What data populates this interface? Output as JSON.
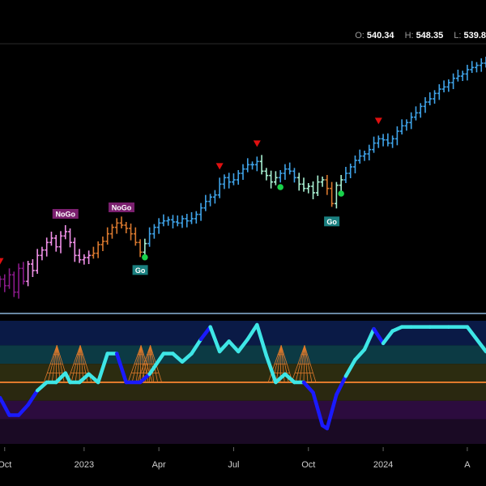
{
  "ohlc_bar": {
    "open_label": "O:",
    "open_value": "540.34",
    "high_label": "H:",
    "high_value": "548.35",
    "low_label": "L:",
    "low_value": "539.8"
  },
  "colors": {
    "background": "#000000",
    "strong_go": "#3fa3e8",
    "weak_go": "#a8f0d2",
    "weak_nogo": "#f090e8",
    "strong_nogo": "#8a1a8a",
    "nogo_orange": "#d9782e",
    "osc_cyan": "#3ee6e6",
    "osc_blue": "#1a1aff",
    "zero_line": "#e07a2c",
    "signal_red": "#e01010",
    "signal_green": "#18d24a",
    "go_label_bg": "#1a8080",
    "nogo_label_bg": "#7a1f6e",
    "separator": "#8ab4d8"
  },
  "chart_data": [
    {
      "type": "line",
      "title": "",
      "note": "weekly OHLC bars colored by trend regime",
      "x_ticks": [
        "Oct",
        "2023",
        "Apr",
        "Jul",
        "Oct",
        "2024",
        "A"
      ],
      "series": [
        {
          "points": [
            {
              "t": 0,
              "c": 318,
              "s": "strong_nogo"
            },
            {
              "t": 1,
              "c": 312,
              "s": "strong_nogo"
            },
            {
              "t": 2,
              "c": 322,
              "s": "strong_nogo"
            },
            {
              "t": 3,
              "c": 306,
              "s": "strong_nogo"
            },
            {
              "t": 4,
              "c": 328,
              "s": "strong_nogo"
            },
            {
              "t": 5,
              "c": 316,
              "s": "strong_nogo"
            },
            {
              "t": 6,
              "c": 332,
              "s": "weak_nogo"
            },
            {
              "t": 7,
              "c": 326,
              "s": "weak_nogo"
            },
            {
              "t": 8,
              "c": 340,
              "s": "weak_nogo"
            },
            {
              "t": 9,
              "c": 345,
              "s": "weak_nogo"
            },
            {
              "t": 10,
              "c": 352,
              "s": "weak_nogo"
            },
            {
              "t": 11,
              "c": 356,
              "s": "weak_nogo"
            },
            {
              "t": 12,
              "c": 348,
              "s": "weak_nogo"
            },
            {
              "t": 13,
              "c": 358,
              "s": "weak_nogo"
            },
            {
              "t": 14,
              "c": 362,
              "s": "weak_nogo"
            },
            {
              "t": 15,
              "c": 352,
              "s": "weak_nogo"
            },
            {
              "t": 16,
              "c": 340,
              "s": "weak_nogo"
            },
            {
              "t": 17,
              "c": 336,
              "s": "weak_nogo"
            },
            {
              "t": 18,
              "c": 338,
              "s": "weak_nogo"
            },
            {
              "t": 19,
              "c": 340,
              "s": "weak_nogo"
            },
            {
              "t": 20,
              "c": 342,
              "s": "nogo_orange"
            },
            {
              "t": 21,
              "c": 350,
              "s": "nogo_orange"
            },
            {
              "t": 22,
              "c": 353,
              "s": "nogo_orange"
            },
            {
              "t": 23,
              "c": 360,
              "s": "nogo_orange"
            },
            {
              "t": 24,
              "c": 366,
              "s": "nogo_orange"
            },
            {
              "t": 25,
              "c": 370,
              "s": "nogo_orange"
            },
            {
              "t": 26,
              "c": 368,
              "s": "nogo_orange"
            },
            {
              "t": 27,
              "c": 365,
              "s": "nogo_orange"
            },
            {
              "t": 28,
              "c": 360,
              "s": "nogo_orange"
            },
            {
              "t": 29,
              "c": 352,
              "s": "nogo_orange"
            },
            {
              "t": 30,
              "c": 343,
              "s": "nogo_orange"
            },
            {
              "t": 31,
              "c": 351,
              "s": "weak_go"
            },
            {
              "t": 32,
              "c": 360,
              "s": "strong_go"
            },
            {
              "t": 33,
              "c": 366,
              "s": "strong_go"
            },
            {
              "t": 34,
              "c": 370,
              "s": "strong_go"
            },
            {
              "t": 35,
              "c": 372,
              "s": "strong_go"
            },
            {
              "t": 36,
              "c": 373,
              "s": "strong_go"
            },
            {
              "t": 37,
              "c": 371,
              "s": "strong_go"
            },
            {
              "t": 38,
              "c": 370,
              "s": "strong_go"
            },
            {
              "t": 39,
              "c": 374,
              "s": "strong_go"
            },
            {
              "t": 40,
              "c": 372,
              "s": "strong_go"
            },
            {
              "t": 41,
              "c": 374,
              "s": "strong_go"
            },
            {
              "t": 42,
              "c": 378,
              "s": "strong_go"
            },
            {
              "t": 43,
              "c": 384,
              "s": "strong_go"
            },
            {
              "t": 44,
              "c": 390,
              "s": "strong_go"
            },
            {
              "t": 45,
              "c": 394,
              "s": "strong_go"
            },
            {
              "t": 46,
              "c": 396,
              "s": "strong_go"
            },
            {
              "t": 47,
              "c": 406,
              "s": "strong_go"
            },
            {
              "t": 48,
              "c": 412,
              "s": "strong_go"
            },
            {
              "t": 49,
              "c": 408,
              "s": "strong_go"
            },
            {
              "t": 50,
              "c": 410,
              "s": "strong_go"
            },
            {
              "t": 51,
              "c": 416,
              "s": "strong_go"
            },
            {
              "t": 52,
              "c": 420,
              "s": "strong_go"
            },
            {
              "t": 53,
              "c": 424,
              "s": "strong_go"
            },
            {
              "t": 54,
              "c": 424,
              "s": "strong_go"
            },
            {
              "t": 55,
              "c": 427,
              "s": "strong_go"
            },
            {
              "t": 56,
              "c": 418,
              "s": "weak_go"
            },
            {
              "t": 57,
              "c": 414,
              "s": "weak_go"
            },
            {
              "t": 58,
              "c": 408,
              "s": "weak_go"
            },
            {
              "t": 59,
              "c": 412,
              "s": "weak_go"
            },
            {
              "t": 60,
              "c": 416,
              "s": "strong_go"
            },
            {
              "t": 61,
              "c": 420,
              "s": "strong_go"
            },
            {
              "t": 62,
              "c": 418,
              "s": "strong_go"
            },
            {
              "t": 63,
              "c": 412,
              "s": "strong_go"
            },
            {
              "t": 64,
              "c": 406,
              "s": "weak_go"
            },
            {
              "t": 65,
              "c": 402,
              "s": "weak_go"
            },
            {
              "t": 66,
              "c": 404,
              "s": "weak_go"
            },
            {
              "t": 67,
              "c": 398,
              "s": "weak_go"
            },
            {
              "t": 68,
              "c": 408,
              "s": "weak_go"
            },
            {
              "t": 69,
              "c": 410,
              "s": "weak_go"
            },
            {
              "t": 70,
              "c": 402,
              "s": "nogo_orange"
            },
            {
              "t": 71,
              "c": 388,
              "s": "nogo_orange"
            },
            {
              "t": 72,
              "c": 405,
              "s": "weak_go"
            },
            {
              "t": 73,
              "c": 410,
              "s": "weak_go"
            },
            {
              "t": 74,
              "c": 416,
              "s": "strong_go"
            },
            {
              "t": 75,
              "c": 422,
              "s": "strong_go"
            },
            {
              "t": 76,
              "c": 428,
              "s": "strong_go"
            },
            {
              "t": 77,
              "c": 432,
              "s": "strong_go"
            },
            {
              "t": 78,
              "c": 434,
              "s": "strong_go"
            },
            {
              "t": 79,
              "c": 438,
              "s": "strong_go"
            },
            {
              "t": 80,
              "c": 444,
              "s": "strong_go"
            },
            {
              "t": 81,
              "c": 448,
              "s": "strong_go"
            },
            {
              "t": 82,
              "c": 447,
              "s": "strong_go"
            },
            {
              "t": 83,
              "c": 444,
              "s": "strong_go"
            },
            {
              "t": 84,
              "c": 448,
              "s": "strong_go"
            },
            {
              "t": 85,
              "c": 455,
              "s": "strong_go"
            },
            {
              "t": 86,
              "c": 460,
              "s": "strong_go"
            },
            {
              "t": 87,
              "c": 463,
              "s": "strong_go"
            },
            {
              "t": 88,
              "c": 468,
              "s": "strong_go"
            },
            {
              "t": 89,
              "c": 472,
              "s": "strong_go"
            },
            {
              "t": 90,
              "c": 478,
              "s": "strong_go"
            },
            {
              "t": 91,
              "c": 482,
              "s": "strong_go"
            },
            {
              "t": 92,
              "c": 485,
              "s": "strong_go"
            },
            {
              "t": 93,
              "c": 490,
              "s": "strong_go"
            },
            {
              "t": 94,
              "c": 494,
              "s": "strong_go"
            },
            {
              "t": 95,
              "c": 496,
              "s": "strong_go"
            },
            {
              "t": 96,
              "c": 500,
              "s": "strong_go"
            },
            {
              "t": 97,
              "c": 504,
              "s": "strong_go"
            },
            {
              "t": 98,
              "c": 506,
              "s": "strong_go"
            },
            {
              "t": 99,
              "c": 508,
              "s": "strong_go"
            },
            {
              "t": 100,
              "c": 512,
              "s": "strong_go"
            },
            {
              "t": 101,
              "c": 514,
              "s": "strong_go"
            },
            {
              "t": 102,
              "c": 516,
              "s": "strong_go"
            },
            {
              "t": 103,
              "c": 518,
              "s": "strong_go"
            },
            {
              "t": 104,
              "c": 517,
              "s": "strong_go"
            }
          ]
        }
      ],
      "ylim": [
        290,
        530
      ],
      "xlim": [
        0,
        104
      ],
      "annotations": [
        {
          "type": "label",
          "text": "NoGo",
          "t": 14,
          "kind": "nogo"
        },
        {
          "type": "label",
          "text": "NoGo",
          "t": 26,
          "kind": "nogo"
        },
        {
          "type": "label",
          "text": "Go",
          "t": 30,
          "kind": "go"
        },
        {
          "type": "label",
          "text": "Go",
          "t": 71,
          "kind": "go"
        },
        {
          "type": "marker",
          "shape": "triangle-down",
          "t": 0,
          "color": "signal_red"
        },
        {
          "type": "marker",
          "shape": "triangle-down",
          "t": 47,
          "color": "signal_red"
        },
        {
          "type": "marker",
          "shape": "triangle-down",
          "t": 55,
          "color": "signal_red"
        },
        {
          "type": "marker",
          "shape": "triangle-down",
          "t": 81,
          "color": "signal_red"
        },
        {
          "type": "marker",
          "shape": "circle",
          "t": 31,
          "color": "signal_green"
        },
        {
          "type": "marker",
          "shape": "circle",
          "t": 60,
          "color": "signal_green"
        },
        {
          "type": "marker",
          "shape": "circle",
          "t": 73,
          "color": "signal_green"
        }
      ]
    },
    {
      "type": "line",
      "title": "",
      "note": "momentum oscillator with colored zones and zero line",
      "ylim": [
        -6,
        6
      ],
      "zero_line": 0,
      "series": [
        {
          "points": [
            {
              "t": 0,
              "v": -1.5,
              "s": "blue"
            },
            {
              "t": 2,
              "v": -3.2,
              "s": "blue"
            },
            {
              "t": 4,
              "v": -3.2,
              "s": "blue"
            },
            {
              "t": 6,
              "v": -2.2,
              "s": "blue"
            },
            {
              "t": 8,
              "v": -0.8,
              "s": "blue"
            },
            {
              "t": 10,
              "v": 0.0,
              "s": "cyan"
            },
            {
              "t": 12,
              "v": 0.0,
              "s": "cyan"
            },
            {
              "t": 14,
              "v": 0.9,
              "s": "cyan"
            },
            {
              "t": 15,
              "v": 0.0,
              "s": "cyan"
            },
            {
              "t": 17,
              "v": 0.0,
              "s": "cyan"
            },
            {
              "t": 19,
              "v": 0.8,
              "s": "cyan"
            },
            {
              "t": 21,
              "v": 0.0,
              "s": "cyan"
            },
            {
              "t": 23,
              "v": 2.8,
              "s": "cyan"
            },
            {
              "t": 25,
              "v": 2.8,
              "s": "cyan"
            },
            {
              "t": 27,
              "v": 0.0,
              "s": "blue"
            },
            {
              "t": 30,
              "v": 0.0,
              "s": "blue"
            },
            {
              "t": 32,
              "v": 0.8,
              "s": "blue"
            },
            {
              "t": 35,
              "v": 2.8,
              "s": "cyan"
            },
            {
              "t": 37,
              "v": 2.8,
              "s": "cyan"
            },
            {
              "t": 39,
              "v": 2.0,
              "s": "cyan"
            },
            {
              "t": 41,
              "v": 2.8,
              "s": "cyan"
            },
            {
              "t": 43,
              "v": 4.2,
              "s": "cyan"
            },
            {
              "t": 45,
              "v": 5.4,
              "s": "blue"
            },
            {
              "t": 47,
              "v": 3.0,
              "s": "cyan"
            },
            {
              "t": 49,
              "v": 4.0,
              "s": "cyan"
            },
            {
              "t": 51,
              "v": 3.0,
              "s": "cyan"
            },
            {
              "t": 53,
              "v": 4.2,
              "s": "cyan"
            },
            {
              "t": 55,
              "v": 5.6,
              "s": "cyan"
            },
            {
              "t": 57,
              "v": 2.6,
              "s": "cyan"
            },
            {
              "t": 59,
              "v": 0.0,
              "s": "cyan"
            },
            {
              "t": 61,
              "v": 0.8,
              "s": "cyan"
            },
            {
              "t": 63,
              "v": 0.0,
              "s": "cyan"
            },
            {
              "t": 65,
              "v": 0.0,
              "s": "cyan"
            },
            {
              "t": 67,
              "v": -1.0,
              "s": "blue"
            },
            {
              "t": 69,
              "v": -4.2,
              "s": "blue"
            },
            {
              "t": 70,
              "v": -4.5,
              "s": "blue"
            },
            {
              "t": 72,
              "v": -1.2,
              "s": "blue"
            },
            {
              "t": 74,
              "v": 0.6,
              "s": "blue"
            },
            {
              "t": 76,
              "v": 2.2,
              "s": "cyan"
            },
            {
              "t": 78,
              "v": 3.2,
              "s": "cyan"
            },
            {
              "t": 80,
              "v": 5.2,
              "s": "cyan"
            },
            {
              "t": 82,
              "v": 3.8,
              "s": "blue"
            },
            {
              "t": 84,
              "v": 5.0,
              "s": "cyan"
            },
            {
              "t": 86,
              "v": 5.4,
              "s": "cyan"
            },
            {
              "t": 88,
              "v": 5.4,
              "s": "cyan"
            },
            {
              "t": 92,
              "v": 5.4,
              "s": "cyan"
            },
            {
              "t": 96,
              "v": 5.4,
              "s": "cyan"
            },
            {
              "t": 100,
              "v": 5.4,
              "s": "cyan"
            },
            {
              "t": 104,
              "v": 3.0,
              "s": "cyan"
            }
          ]
        }
      ],
      "fans": [
        {
          "t": 12,
          "dir": "up"
        },
        {
          "t": 17,
          "dir": "up"
        },
        {
          "t": 30,
          "dir": "up"
        },
        {
          "t": 32,
          "dir": "up"
        },
        {
          "t": 60,
          "dir": "up"
        },
        {
          "t": 65,
          "dir": "up"
        }
      ],
      "zones": [
        {
          "from": 3.6,
          "to": 6,
          "color": "#0a1a46"
        },
        {
          "from": 1.8,
          "to": 3.6,
          "color": "#0c3a44"
        },
        {
          "from": 0,
          "to": 1.8,
          "color": "#2c2c10"
        },
        {
          "from": -1.8,
          "to": 0,
          "color": "#2a2810"
        },
        {
          "from": -3.6,
          "to": -1.8,
          "color": "#2c0c3e"
        },
        {
          "from": -6,
          "to": -3.6,
          "color": "#1a0a24"
        }
      ]
    }
  ]
}
